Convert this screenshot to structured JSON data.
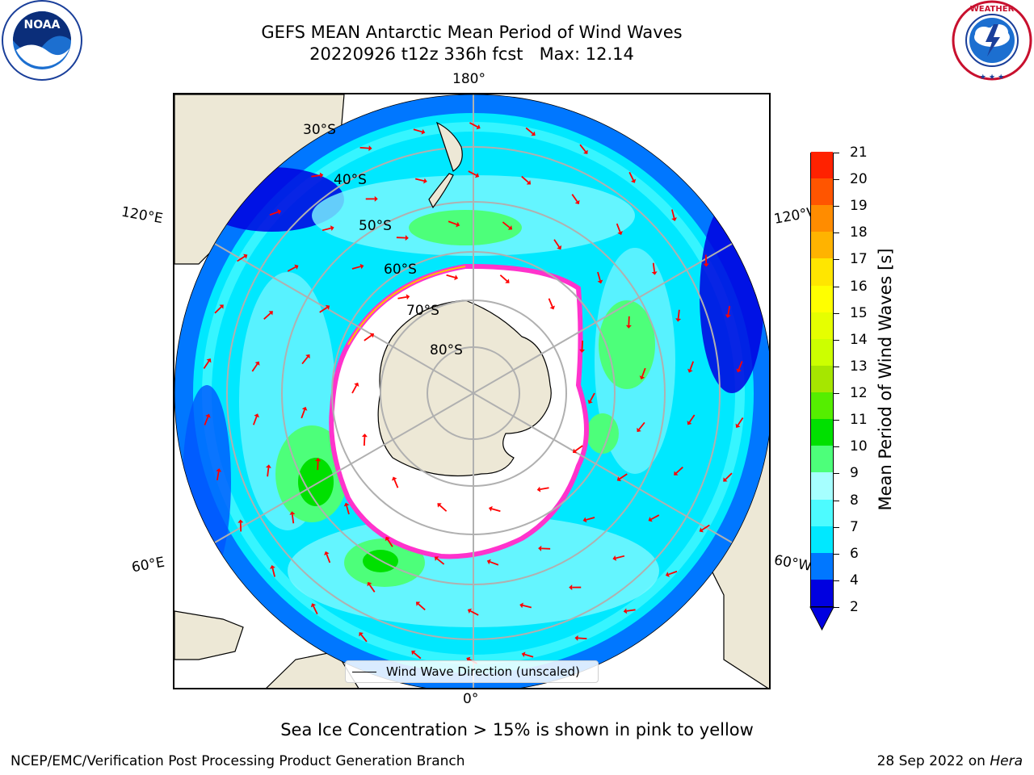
{
  "title": {
    "line1": "GEFS MEAN Antarctic Mean Period of Wind Waves",
    "line2": "20220926 t12z 336h fcst   Max: 12.14"
  },
  "logos": {
    "left_name": "NOAA",
    "left_ring_text": "NATIONAL OCEANIC AND ATMOSPHERIC ADMINISTRATION · U.S. DEPARTMENT OF COMMERCE",
    "right_ring_text": "NATIONAL WEATHER SERVICE"
  },
  "map": {
    "projection": "south-polar-stereographic",
    "longitude_labels": {
      "top": "180°",
      "bottom": "0°",
      "upper_left": "120°E",
      "lower_left": "60°E",
      "upper_right": "120°W",
      "lower_right": "60°W"
    },
    "latitude_labels": [
      "30°S",
      "40°S",
      "50°S",
      "60°S",
      "70°S",
      "80°S"
    ],
    "legend_label": "Wind Wave Direction (unscaled)",
    "colors": {
      "land": "#ede8d6",
      "ocean_low": "#0055ff",
      "ocean_mid": "#00e8ff",
      "ocean_light": "#7df7ff",
      "ocean_green": "#4dff7a",
      "ocean_green_dark": "#00e000",
      "ice_edge": "#ff33cc",
      "arrow": "#ff0000"
    }
  },
  "colorbar": {
    "label": "Mean Period of Wind Waves [s]",
    "ticks": [
      "2",
      "4",
      "6",
      "7",
      "8",
      "9",
      "10",
      "11",
      "12",
      "13",
      "14",
      "15",
      "16",
      "17",
      "18",
      "19",
      "20",
      "21"
    ],
    "colors": [
      "#0000e0",
      "#0077ff",
      "#00e8ff",
      "#4dfbff",
      "#a6ffff",
      "#4dff7a",
      "#00e000",
      "#55ee00",
      "#a6e600",
      "#ccff00",
      "#e6ff00",
      "#ffff00",
      "#ffe600",
      "#ffb300",
      "#ff8c00",
      "#ff5500",
      "#ff2200",
      "#ff0000"
    ],
    "extend": "min"
  },
  "caption": "Sea Ice Concentration > 15% is shown in pink to yellow",
  "footer": {
    "left": "NCEP/EMC/Verification Post Processing Product Generation Branch",
    "right_date": "28 Sep 2022 on",
    "right_host": "Hera"
  }
}
